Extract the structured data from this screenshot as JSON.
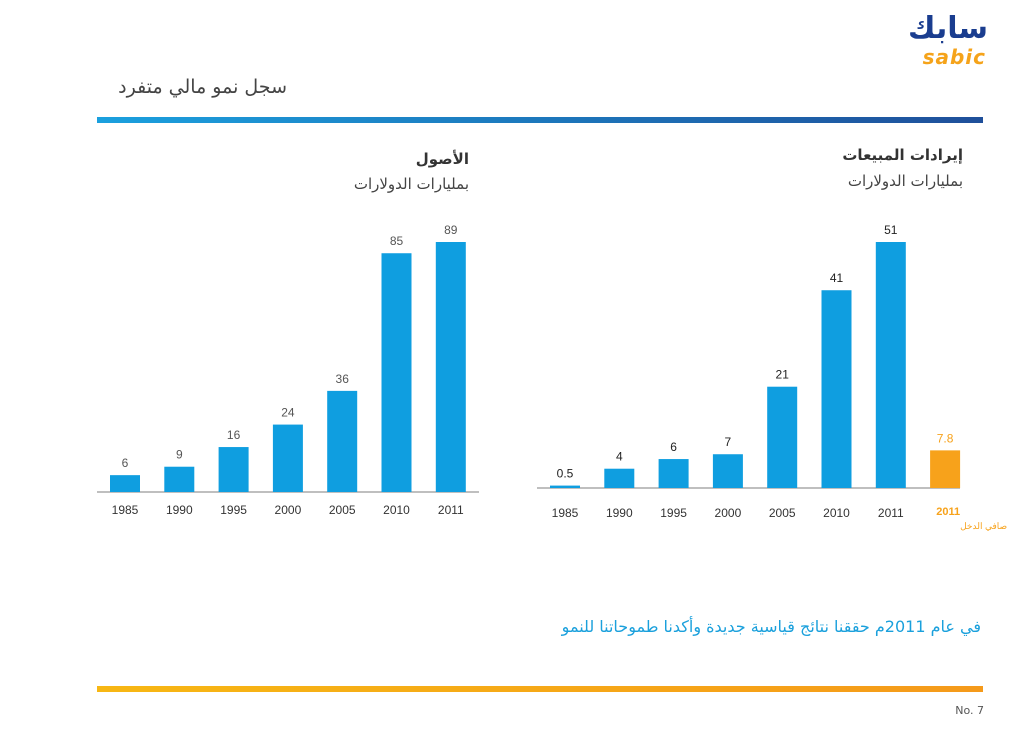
{
  "page": {
    "title": "سجل نمو مالي متفرد",
    "logo_ar": "سابك",
    "logo_en": "sabic",
    "tagline": "في عام 2011م حققنا نتائج قياسية جديدة وأكدنا طموحاتنا للنمو",
    "slide_number": "No. 7"
  },
  "colors": {
    "bar": "#0f9ee0",
    "highlight": "#f7a21b",
    "axis": "#aaaaaa",
    "header_bar_start": "#1ba0de",
    "header_bar_end": "#1f4f9a",
    "footer_bar": "#f7b714"
  },
  "chart_data": [
    {
      "type": "bar",
      "title": "الأصول",
      "subtitle": "بمليارات الدولارات",
      "categories": [
        "1985",
        "1990",
        "1995",
        "2000",
        "2005",
        "2010",
        "2011"
      ],
      "values": [
        6,
        9,
        16,
        24,
        36,
        85,
        89
      ],
      "labels": [
        "6",
        "9",
        "16",
        "24",
        "36",
        "85",
        "89"
      ],
      "ylim": [
        0,
        89
      ]
    },
    {
      "type": "bar",
      "title": "إيرادات المبيعات",
      "subtitle": "بمليارات الدولارات",
      "categories": [
        "1985",
        "1990",
        "1995",
        "2000",
        "2005",
        "2010",
        "2011"
      ],
      "values": [
        0.5,
        4,
        6,
        7,
        21,
        41,
        51
      ],
      "labels": [
        "0.5",
        "4",
        "6",
        "7",
        "21",
        "41",
        "51"
      ],
      "ylim": [
        0,
        51
      ],
      "extra": {
        "category": "2011",
        "label": "صافي الدخل",
        "value": 7.8,
        "value_label": "7.8"
      }
    }
  ]
}
